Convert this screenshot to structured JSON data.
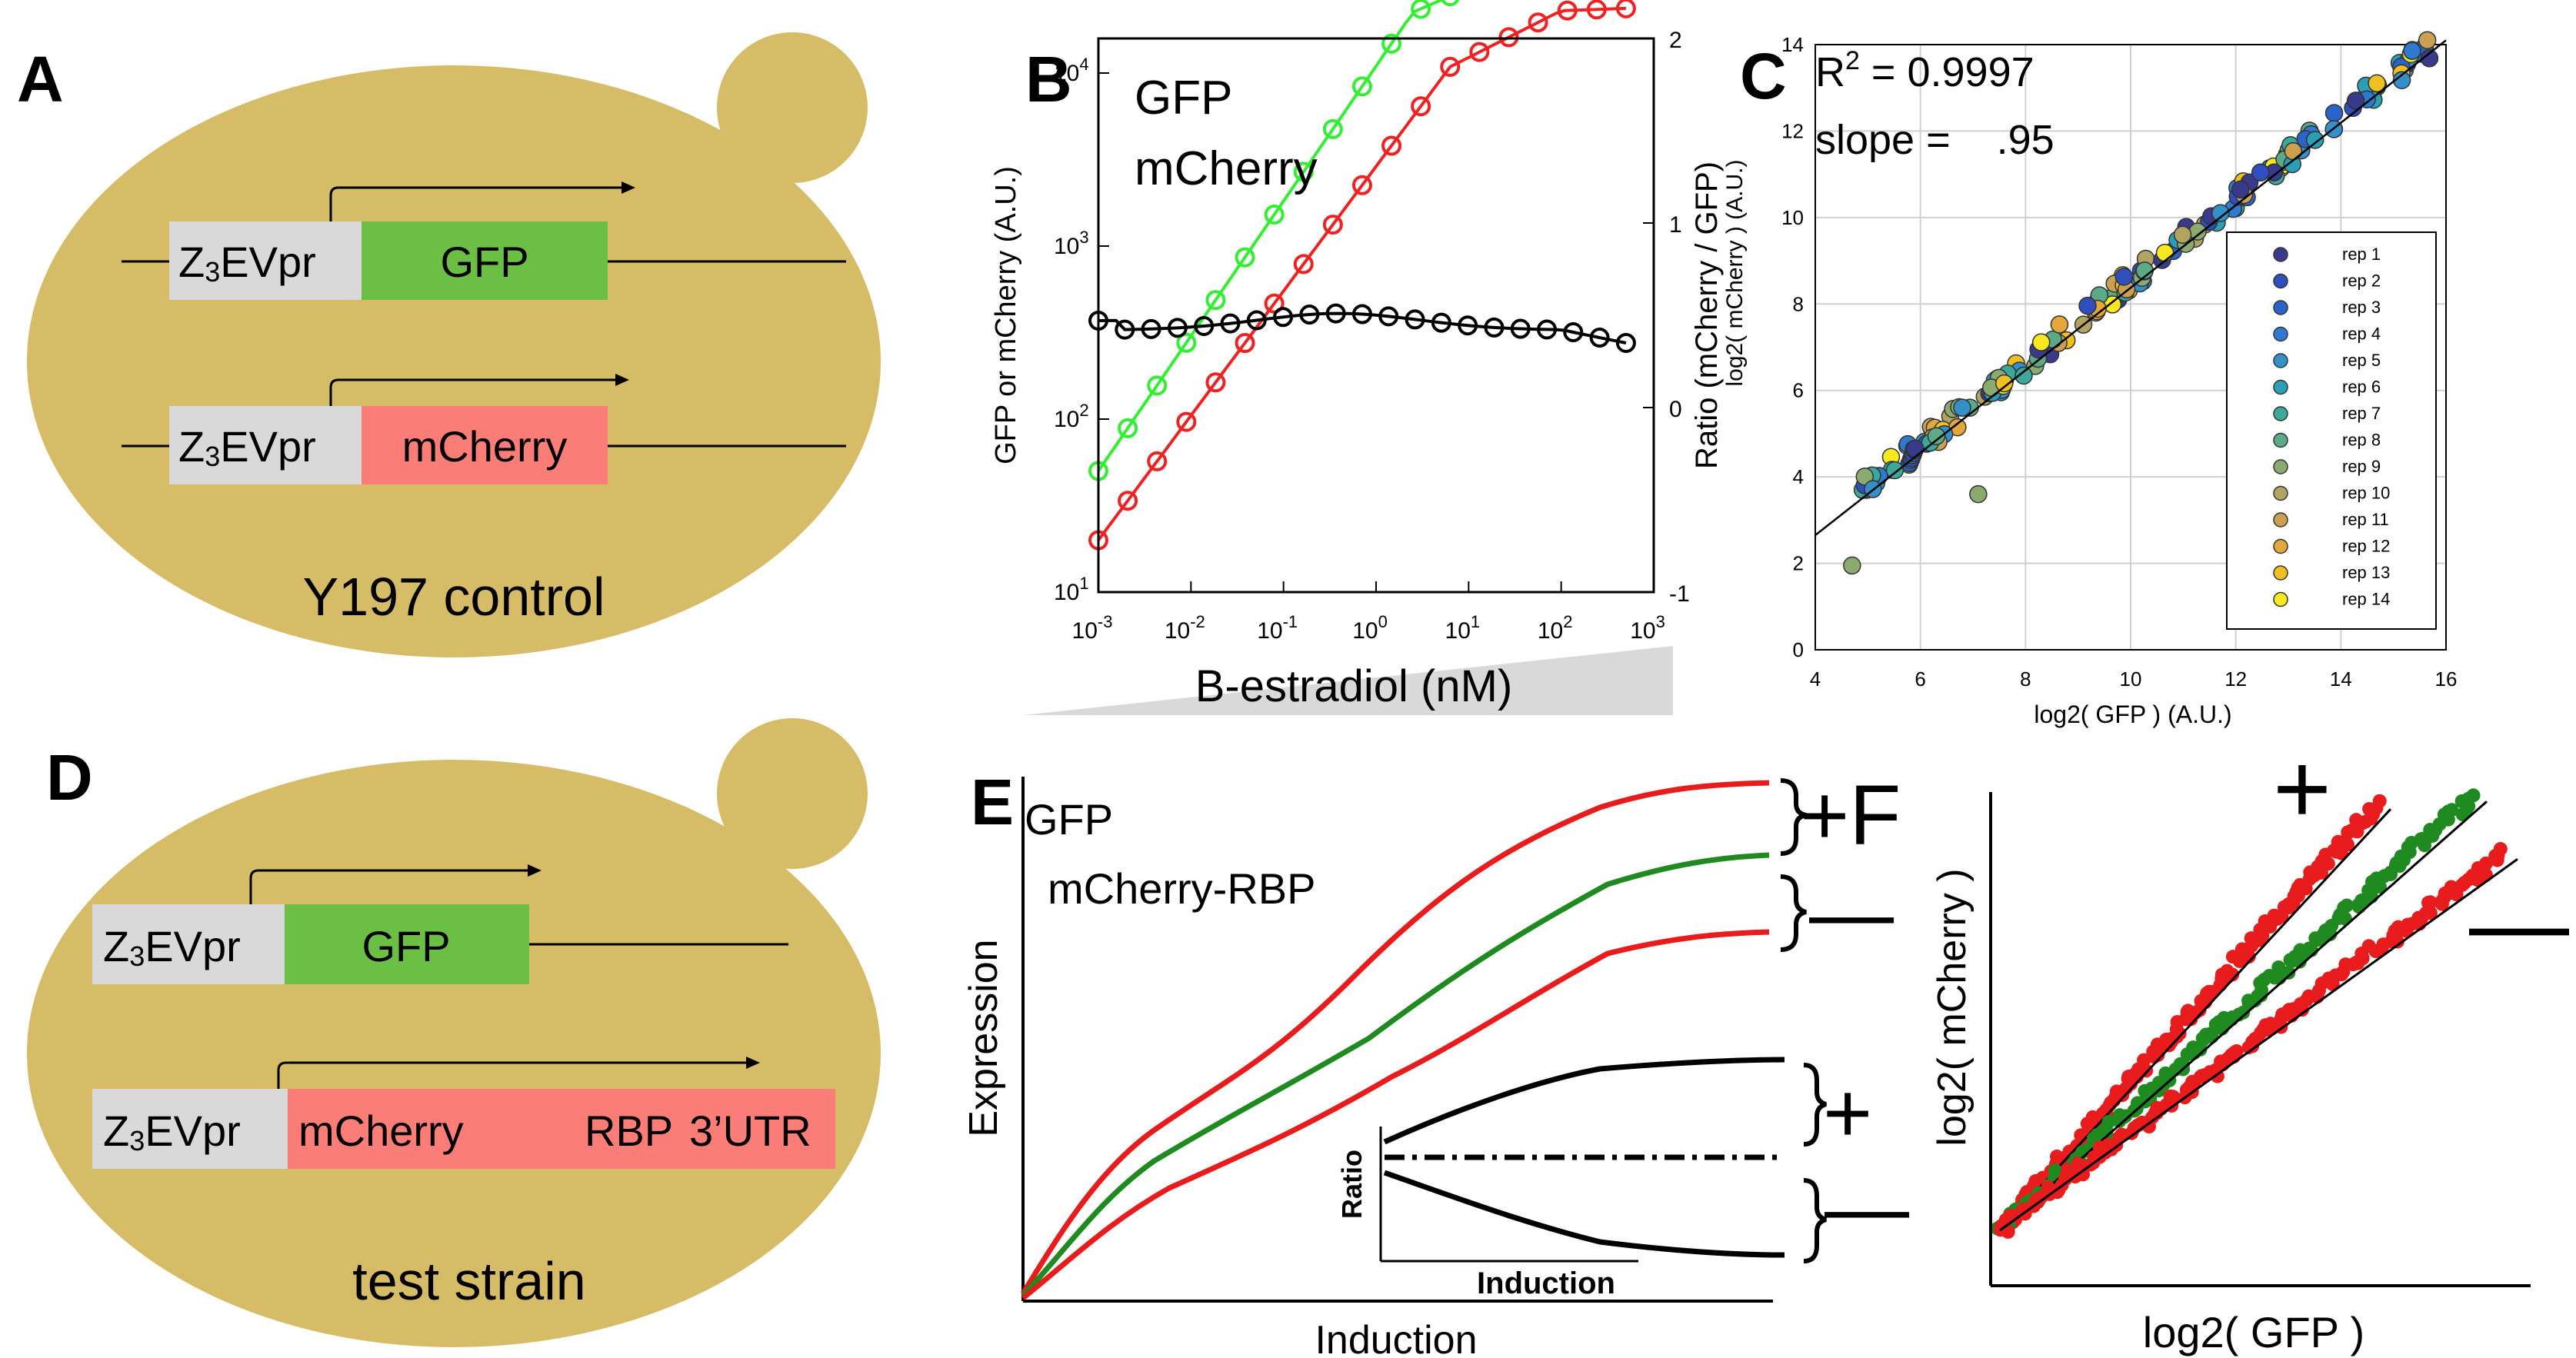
{
  "panels": {
    "A": {
      "letter": "A",
      "promoter": "Z",
      "promoter_sub": "3",
      "promoter_rest": "EVpr",
      "gene1": "GFP",
      "gene2": "mCherry",
      "strain": "Y197 control"
    },
    "B": {
      "letter": "B",
      "legend_gfp": "GFP",
      "legend_mcherry": "mCherry",
      "ylabel": "GFP or mCherry (A.U.)",
      "y2label": "Ratio (mCherry / GFP)",
      "xlabel": "B-estradiol (nM)",
      "xtick_base": "10",
      "xtick_exps": [
        "-3",
        "-2",
        "-1",
        "0",
        "1",
        "2",
        "3"
      ],
      "ytick_exps": [
        "1",
        "2",
        "3",
        "4"
      ],
      "y2ticks": [
        "-1",
        "0",
        "1",
        "2"
      ]
    },
    "C": {
      "letter": "C",
      "r2_label": "R",
      "r2_sup": "2",
      "r2_value": " = 0.9997",
      "slope_label": "slope =    .95",
      "ylabel": "log2( mCherry ) (A.U.)",
      "xlabel": "log2( GFP ) (A.U.)",
      "xticks": [
        "4",
        "6",
        "8",
        "10",
        "12",
        "14",
        "16"
      ],
      "yticks": [
        "0",
        "2",
        "4",
        "6",
        "8",
        "10",
        "12",
        "14"
      ],
      "legend": [
        "rep 1",
        "rep 2",
        "rep 3",
        "rep 4",
        "rep 5",
        "rep 6",
        "rep 7",
        "rep 8",
        "rep 9",
        "rep 10",
        "rep 11",
        "rep 12",
        "rep 13",
        "rep 14"
      ],
      "legend_colors": [
        "#3a3a8c",
        "#2f4fbf",
        "#2a64c8",
        "#2f7ad0",
        "#3490c8",
        "#2a9fb8",
        "#3aa89a",
        "#5aaa88",
        "#8aaa70",
        "#b0a460",
        "#cba050",
        "#e4a83a",
        "#f0c020",
        "#f8e820"
      ]
    },
    "D": {
      "letter": "D",
      "promoter": "Z",
      "promoter_sub": "3",
      "promoter_rest": "EVpr",
      "gene1": "GFP",
      "gene2_a": "mCherry",
      "gene2_b": "RBP",
      "gene2_c": "3’UTR",
      "strain": "test strain"
    },
    "E": {
      "letter": "E",
      "legend_gfp": "GFP",
      "legend_mcherry": "mCherry-RBP",
      "ylabel": "Expression",
      "xlabel": "Induction",
      "inset_ylabel": "Ratio",
      "inset_xlabel": "Induction",
      "plus": "+",
      "plus_f": "+F",
      "minus": "—",
      "right_ylabel": "log2( mCherry )",
      "right_xlabel": "log2( GFP )"
    }
  },
  "colors": {
    "cell": "#d6bc67",
    "promoter_box": "#d9d9d9",
    "gfp_box": "#6cbf45",
    "mcherry_box": "#fa7d78",
    "green_line": "#33ee33",
    "red_line": "#ee2222",
    "dark_green": "#1f8a1f",
    "red": "#e81c1c"
  }
}
